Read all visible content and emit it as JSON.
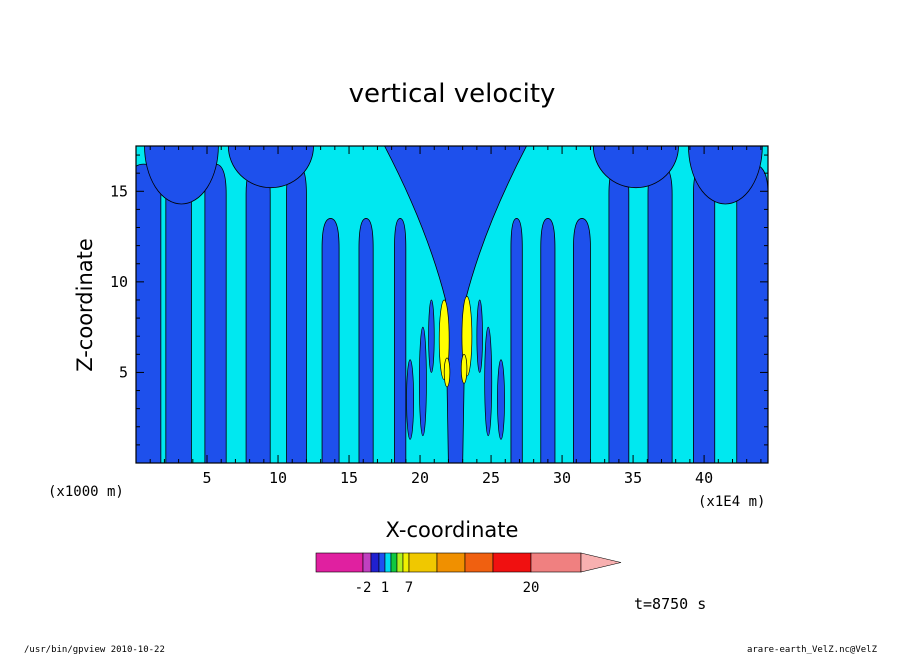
{
  "chart_data": {
    "type": "heatmap",
    "title": "vertical velocity",
    "xlabel": "X-coordinate",
    "ylabel": "Z-coordinate",
    "x_unit_left": "(x1000 m)",
    "x_unit_right": "(x1E4 m)",
    "xlim": [
      0,
      44.5
    ],
    "ylim": [
      0,
      17.5
    ],
    "x_ticks": [
      5,
      10,
      15,
      20,
      25,
      30,
      35,
      40
    ],
    "y_ticks": [
      5,
      10,
      15
    ],
    "time_label": "t=8750 s",
    "colorbar": {
      "tick_labels": [
        "-2",
        "1",
        "7",
        "20"
      ],
      "levels": [
        -2,
        -1,
        0,
        1,
        2,
        3,
        5,
        7,
        9,
        11,
        15,
        20,
        30
      ],
      "colors": [
        "#e020a0",
        "#c040c0",
        "#2020d0",
        "#1e50f0",
        "#00dcf0",
        "#10c840",
        "#b0f020",
        "#f0f000",
        "#f0c800",
        "#f09000",
        "#f06010",
        "#f01010",
        "#f08080",
        "#f8b0b0"
      ]
    },
    "field_colors": {
      "positive": "#00e8f0",
      "negative": "#1e50ec",
      "strong_positive": "#ffff00"
    }
  },
  "footer": {
    "left": "/usr/bin/gpview   2010-10-22",
    "right": "arare-earth_VelZ.nc@VelZ"
  }
}
